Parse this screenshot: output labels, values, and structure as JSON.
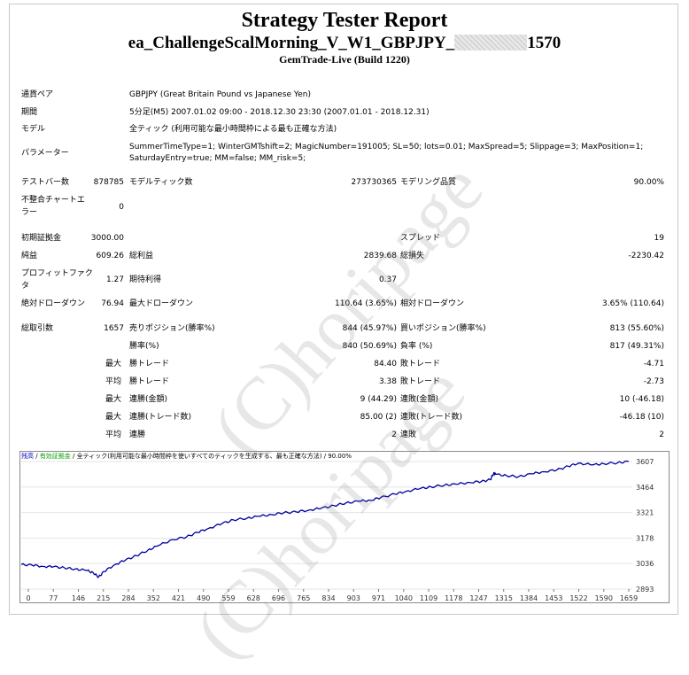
{
  "report": {
    "title": "Strategy Tester Report",
    "ea_name_prefix": "ea_ChallengeScalMorning_V_W1_GBPJPY_",
    "ea_name_suffix": "1570",
    "build": "GemTrade-Live (Build 1220)"
  },
  "info": {
    "symbol_label": "通貨ペア",
    "symbol_value": "GBPJPY (Great Britain Pound vs Japanese Yen)",
    "period_label": "期間",
    "period_value": "5分足(M5) 2007.01.02 09:00 - 2018.12.30 23:30 (2007.01.01 - 2018.12.31)",
    "model_label": "モデル",
    "model_value": "全ティック (利用可能な最小時間枠による最も正確な方法)",
    "params_label": "パラメーター",
    "params_line1": "SummerTimeType=1; WinterGMTshift=2; MagicNumber=191005; SL=50; lots=0.01; MaxSpread=5; Slippage=3; MaxPosition=1;",
    "params_line2": "SaturdayEntry=true; MM=false; MM_risk=5;"
  },
  "stats": {
    "bars_label": "テストバー数",
    "bars_value": "878785",
    "ticks_label": "モデルティック数",
    "ticks_value": "273730365",
    "quality_label": "モデリング品質",
    "quality_value": "90.00%",
    "mismatch_label_1": "不整合チャートエ",
    "mismatch_label_2": "ラー",
    "mismatch_value": "0",
    "deposit_label": "初期証拠金",
    "deposit_value": "3000.00",
    "spread_label": "スプレッド",
    "spread_value": "19",
    "net_label": "純益",
    "net_value": "609.26",
    "gross_profit_label": "総利益",
    "gross_profit_value": "2839.68",
    "gross_loss_label": "総損失",
    "gross_loss_value": "-2230.42",
    "pf_label_1": "プロフィットファク",
    "pf_label_2": "タ",
    "pf_value": "1.27",
    "expected_label": "期待利得",
    "expected_value": "0.37",
    "abs_dd_label": "絶対ドローダウン",
    "abs_dd_value": "76.94",
    "max_dd_label": "最大ドローダウン",
    "max_dd_value": "110.64 (3.65%)",
    "rel_dd_label": "相対ドローダウン",
    "rel_dd_value": "3.65% (110.64)",
    "total_trades_label": "総取引数",
    "total_trades_value": "1657",
    "short_label": "売りポジション(勝率%)",
    "short_value": "844 (45.97%)",
    "long_label": "買いポジション(勝率%)",
    "long_value": "813 (55.60%)",
    "win_pct_label": "勝率(%)",
    "win_pct_value": "840 (50.69%)",
    "loss_pct_label": "負率 (%)",
    "loss_pct_value": "817 (49.31%)",
    "max_label": "最大",
    "avg_label": "平均",
    "largest_win_label": "勝トレード",
    "largest_win_value": "84.40",
    "largest_loss_label": "敗トレード",
    "largest_loss_value": "-4.71",
    "avg_win_label": "勝トレード",
    "avg_win_value": "3.38",
    "avg_loss_label": "敗トレード",
    "avg_loss_value": "-2.73",
    "max_cons_wins_label": "連勝(金額)",
    "max_cons_wins_value": "9 (44.29)",
    "max_cons_losses_label": "連敗(金額)",
    "max_cons_losses_value": "10 (-46.18)",
    "max_cons_profit_label": "連勝(トレード数)",
    "max_cons_profit_value": "85.00 (2)",
    "max_cons_loss_label": "連敗(トレード数)",
    "max_cons_loss_value": "-46.18 (10)",
    "avg_cons_wins_label": "連勝",
    "avg_cons_wins_value": "2",
    "avg_cons_losses_label": "連敗",
    "avg_cons_losses_value": "2"
  },
  "watermark": "(C)horipage",
  "chart_data": {
    "type": "line",
    "legend_balance": "残高",
    "legend_sep1": " / ",
    "legend_equity": "有効証拠金",
    "legend_sep2": " / ",
    "legend_model": "全ティック(利用可能な最小時間枠を使いすべてのティックを生成する、最も正確な方法) / 90.00%",
    "x_ticks": [
      "0",
      "77",
      "146",
      "215",
      "284",
      "352",
      "421",
      "490",
      "559",
      "628",
      "696",
      "765",
      "834",
      "903",
      "971",
      "1040",
      "1109",
      "1178",
      "1247",
      "1315",
      "1384",
      "1453",
      "1522",
      "1590",
      "1659"
    ],
    "y_ticks": [
      "3607",
      "3464",
      "3321",
      "3178",
      "3036",
      "2893"
    ],
    "ylim": [
      2893,
      3607
    ],
    "xlim": [
      0,
      1700
    ],
    "series": [
      {
        "color": "#0000a0",
        "x": [
          0,
          30,
          60,
          90,
          120,
          150,
          180,
          200,
          215,
          230,
          260,
          290,
          320,
          352,
          380,
          421,
          460,
          490,
          520,
          559,
          590,
          628,
          660,
          696,
          730,
          765,
          800,
          834,
          870,
          903,
          940,
          971,
          1000,
          1040,
          1070,
          1109,
          1140,
          1178,
          1210,
          1247,
          1280,
          1305,
          1315,
          1320,
          1350,
          1384,
          1420,
          1453,
          1490,
          1522,
          1550,
          1590,
          1620,
          1659,
          1690
        ],
        "y": [
          3030,
          3027,
          3020,
          3018,
          3012,
          3005,
          2998,
          2985,
          2960,
          2990,
          3030,
          3055,
          3080,
          3110,
          3135,
          3170,
          3185,
          3210,
          3232,
          3260,
          3280,
          3290,
          3300,
          3310,
          3320,
          3325,
          3335,
          3345,
          3360,
          3375,
          3385,
          3390,
          3405,
          3425,
          3440,
          3455,
          3465,
          3475,
          3480,
          3490,
          3495,
          3505,
          3545,
          3535,
          3528,
          3522,
          3538,
          3550,
          3560,
          3580,
          3598,
          3588,
          3595,
          3600,
          3607
        ]
      }
    ]
  }
}
